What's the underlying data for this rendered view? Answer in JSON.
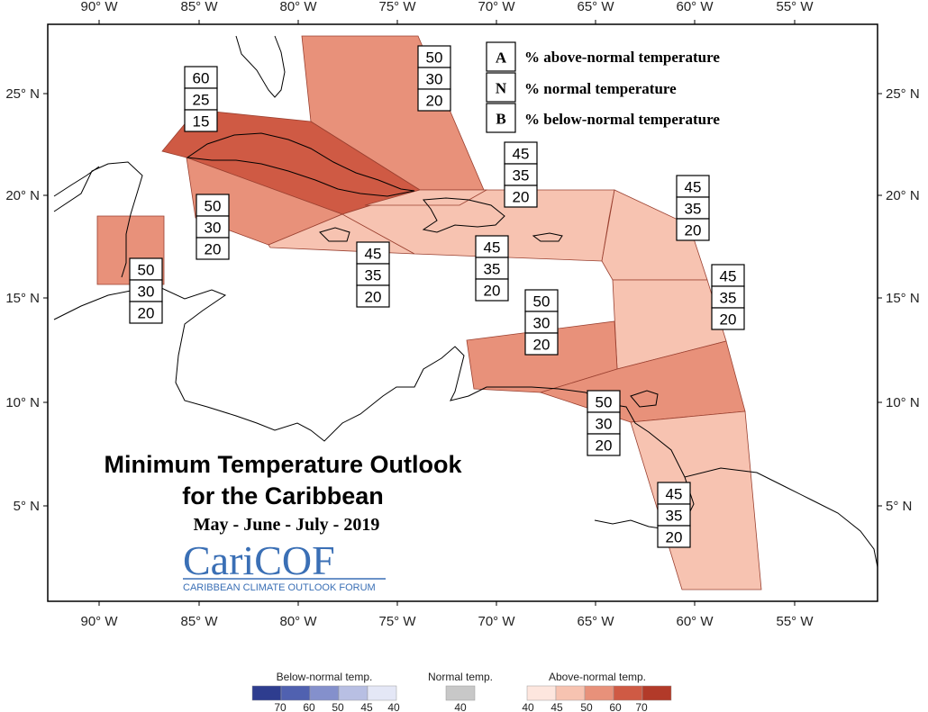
{
  "map": {
    "x_ticks": [
      "90° W",
      "85° W",
      "80° W",
      "75° W",
      "70° W",
      "65° W",
      "60° W",
      "55° W"
    ],
    "y_ticks_left": [
      "25° N",
      "20° N",
      "15° N",
      "10° N",
      "5° N"
    ],
    "y_ticks_right": [
      "25° N",
      "20° N",
      "15° N",
      "10° N",
      "5° N"
    ],
    "regions": [
      {
        "id": "bahamas",
        "above": "50",
        "normal": "30",
        "below": "20",
        "category": "above-50",
        "color": "#e8917a"
      },
      {
        "id": "cuba",
        "above": "60",
        "normal": "25",
        "below": "15",
        "category": "above-60",
        "color": "#cf5a44"
      },
      {
        "id": "cayman",
        "above": "50",
        "normal": "30",
        "below": "20",
        "category": "above-50",
        "color": "#e8917a"
      },
      {
        "id": "belize",
        "above": "50",
        "normal": "30",
        "below": "20",
        "category": "above-50",
        "color": "#e8917a"
      },
      {
        "id": "jamaica",
        "above": "45",
        "normal": "35",
        "below": "20",
        "category": "above-45",
        "color": "#f7c3b1"
      },
      {
        "id": "hispaniola",
        "above": "45",
        "normal": "35",
        "below": "20",
        "category": "above-45",
        "color": "#f7c3b1"
      },
      {
        "id": "turks-caicos",
        "above": "45",
        "normal": "35",
        "below": "20",
        "category": "above-45",
        "color": "#f7c3b1"
      },
      {
        "id": "leeward",
        "above": "45",
        "normal": "35",
        "below": "20",
        "category": "above-45",
        "color": "#f7c3b1"
      },
      {
        "id": "windward",
        "above": "45",
        "normal": "35",
        "below": "20",
        "category": "above-45",
        "color": "#f7c3b1"
      },
      {
        "id": "abc-islands",
        "above": "50",
        "normal": "30",
        "below": "20",
        "category": "above-50",
        "color": "#e8917a"
      },
      {
        "id": "trinidad",
        "above": "50",
        "normal": "30",
        "below": "20",
        "category": "above-50",
        "color": "#e8917a"
      },
      {
        "id": "guianas",
        "above": "45",
        "normal": "35",
        "below": "20",
        "category": "above-45",
        "color": "#f7c3b1"
      }
    ]
  },
  "key": {
    "a_letter": "A",
    "a_text": "% above-normal temperature",
    "n_letter": "N",
    "n_text": "% normal temperature",
    "b_letter": "B",
    "b_text": "% below-normal temperature"
  },
  "title": {
    "line1": "Minimum Temperature Outlook",
    "line2": "for the Caribbean",
    "period": "May - June - July - 2019"
  },
  "logo": {
    "name": "CariCOF",
    "subtitle": "CARIBBEAN CLIMATE OUTLOOK FORUM"
  },
  "legend": {
    "below_title": "Below-normal temp.",
    "normal_title": "Normal temp.",
    "above_title": "Above-normal temp.",
    "below_colors": [
      "#2e3d8f",
      "#5061b0",
      "#8490cc",
      "#b8bfe3",
      "#e4e7f6"
    ],
    "below_ticks": [
      "70",
      "60",
      "50",
      "45",
      "40"
    ],
    "normal_color": "#c8c8c8",
    "normal_tick": "40",
    "above_colors": [
      "#fde6de",
      "#f7c3b1",
      "#e8917a",
      "#cf5a44",
      "#b23a29"
    ],
    "above_ticks": [
      "40",
      "45",
      "50",
      "60",
      "70"
    ]
  }
}
